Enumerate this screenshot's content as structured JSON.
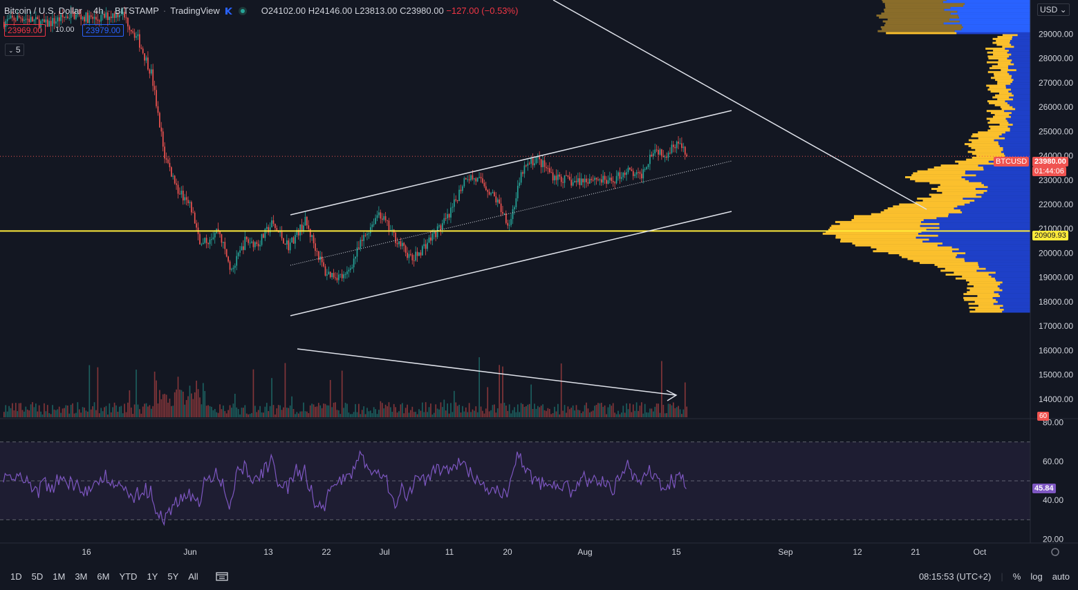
{
  "header": {
    "symbol": "Bitcoin / U.S. Dollar",
    "interval": "4h",
    "exchange": "BITSTAMP",
    "platform": "TradingView",
    "open": "O24102.00",
    "high": "H24146.00",
    "low": "L23813.00",
    "close": "C23980.00",
    "change": "−127.00 (−0.53%)",
    "bid": "23969.00",
    "spread": "10.00",
    "ask": "23979.00",
    "indicators_count": "5"
  },
  "price_axis": {
    "currency": "USD",
    "ticks": [
      "29000.00",
      "28000.00",
      "27000.00",
      "26000.00",
      "25000.00",
      "24000.00",
      "23000.00",
      "22000.00",
      "21000.00",
      "20000.00",
      "19000.00",
      "18000.00",
      "17000.00",
      "16000.00",
      "15000.00",
      "14000.00"
    ],
    "last_symbol": "BTCUSD",
    "last_price": "23980.00",
    "countdown": "01:44:06",
    "hline_price": "20909.93",
    "volume_label": "60"
  },
  "rsi_axis": {
    "ticks": [
      "80.00",
      "60.00",
      "40.00",
      "20.00"
    ],
    "current": "45.84"
  },
  "time_axis": [
    "16",
    "Jun",
    "13",
    "22",
    "Jul",
    "11",
    "20",
    "Aug",
    "15",
    "Sep",
    "12",
    "21",
    "Oct"
  ],
  "bottom_bar": {
    "timeframes": [
      "1D",
      "5D",
      "1M",
      "3M",
      "6M",
      "YTD",
      "1Y",
      "5Y",
      "All"
    ],
    "clock": "08:15:53 (UTC+2)",
    "percent": "%",
    "log": "log",
    "auto": "auto"
  },
  "colors": {
    "background": "#131722",
    "up": "#26a69a",
    "down": "#ef5350",
    "hline": "#ffeb3b",
    "rsi": "#7e57c2",
    "vp_up": "#fbc02d",
    "vp_down": "#1e40c8"
  },
  "chart_data": {
    "type": "candlestick",
    "y_range": [
      13600,
      30400
    ],
    "anchors": [
      {
        "t": 0,
        "p": 29500
      },
      {
        "t": 10,
        "p": 29700
      },
      {
        "t": 25,
        "p": 29400
      },
      {
        "t": 40,
        "p": 29800
      },
      {
        "t": 55,
        "p": 29600
      },
      {
        "t": 70,
        "p": 29900
      },
      {
        "t": 80,
        "p": 28800
      },
      {
        "t": 88,
        "p": 27400
      },
      {
        "t": 96,
        "p": 24000
      },
      {
        "t": 104,
        "p": 22600
      },
      {
        "t": 112,
        "p": 21800
      },
      {
        "t": 118,
        "p": 20300
      },
      {
        "t": 128,
        "p": 21000
      },
      {
        "t": 136,
        "p": 19200
      },
      {
        "t": 144,
        "p": 20500
      },
      {
        "t": 152,
        "p": 20400
      },
      {
        "t": 160,
        "p": 21200
      },
      {
        "t": 170,
        "p": 20300
      },
      {
        "t": 180,
        "p": 21300
      },
      {
        "t": 192,
        "p": 19200
      },
      {
        "t": 204,
        "p": 19000
      },
      {
        "t": 214,
        "p": 20500
      },
      {
        "t": 224,
        "p": 21700
      },
      {
        "t": 232,
        "p": 20800
      },
      {
        "t": 244,
        "p": 19700
      },
      {
        "t": 256,
        "p": 20700
      },
      {
        "t": 266,
        "p": 21500
      },
      {
        "t": 276,
        "p": 23200
      },
      {
        "t": 286,
        "p": 22900
      },
      {
        "t": 294,
        "p": 22200
      },
      {
        "t": 302,
        "p": 21200
      },
      {
        "t": 310,
        "p": 23400
      },
      {
        "t": 318,
        "p": 23900
      },
      {
        "t": 328,
        "p": 23200
      },
      {
        "t": 340,
        "p": 22900
      },
      {
        "t": 352,
        "p": 23100
      },
      {
        "t": 362,
        "p": 22900
      },
      {
        "t": 372,
        "p": 23400
      },
      {
        "t": 380,
        "p": 23100
      },
      {
        "t": 388,
        "p": 24300
      },
      {
        "t": 396,
        "p": 24100
      },
      {
        "t": 402,
        "p": 24600
      },
      {
        "t": 408,
        "p": 23980
      }
    ],
    "hline": 20909.93,
    "last": 23980,
    "rsi": {
      "range": [
        18,
        82
      ],
      "bands": [
        70,
        50,
        30
      ],
      "last": 45.84
    }
  }
}
